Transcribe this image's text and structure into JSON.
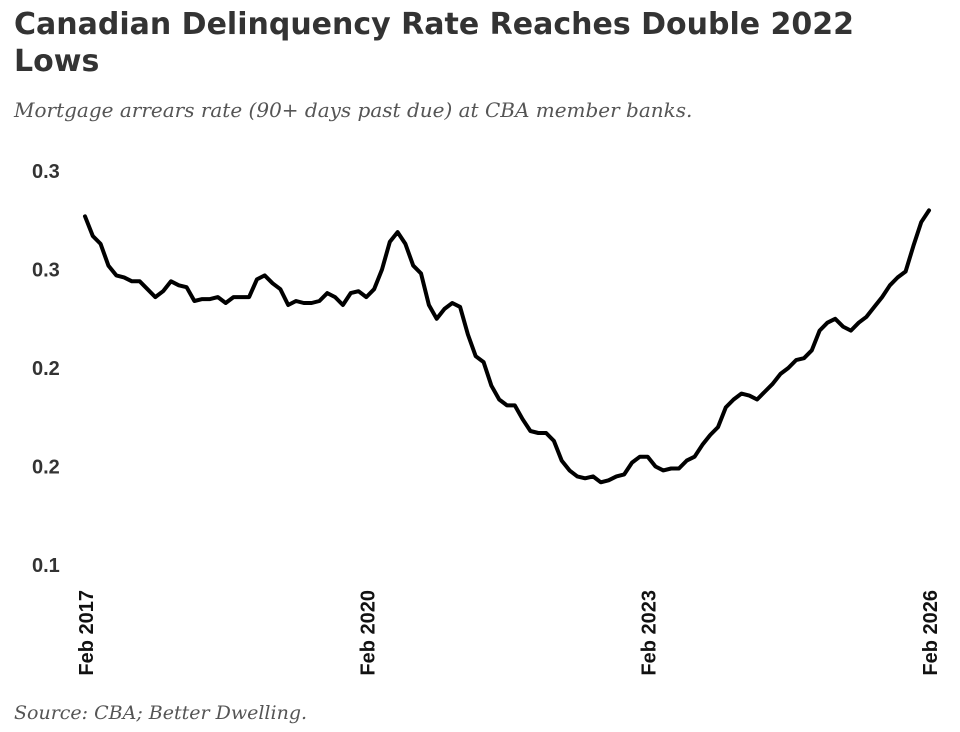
{
  "title": "Canadian Delinquency Rate Reaches Double 2022 Lows",
  "subtitle": "Mortgage arrears rate (90+ days past due) at CBA member banks.",
  "source": "Source: CBA; Better Dwelling.",
  "chart_data": {
    "type": "line",
    "ylim": [
      0.1,
      0.3
    ],
    "y_ticks": [
      {
        "value": 0.3,
        "label": "0.3"
      },
      {
        "value": 0.25,
        "label": "0.3"
      },
      {
        "value": 0.2,
        "label": "0.2"
      },
      {
        "value": 0.15,
        "label": "0.2"
      },
      {
        "value": 0.1,
        "label": "0.1"
      }
    ],
    "x_ticks": [
      "Feb 2017",
      "Feb 2020",
      "Feb 2023",
      "Feb 2026"
    ],
    "x_start": "2017-02",
    "x_end": "2026-02",
    "grid": false,
    "legend": "none",
    "line_color": "#000000",
    "series": [
      {
        "x": [
          "2017-02",
          "2017-03",
          "2017-04",
          "2017-05",
          "2017-06",
          "2017-07",
          "2017-08",
          "2017-09",
          "2017-10",
          "2017-11",
          "2017-12",
          "2018-01",
          "2018-02",
          "2018-03",
          "2018-04",
          "2018-05",
          "2018-06",
          "2018-07",
          "2018-08",
          "2018-09",
          "2018-10",
          "2018-11",
          "2018-12",
          "2019-01",
          "2019-02",
          "2019-03",
          "2019-04",
          "2019-05",
          "2019-06",
          "2019-07",
          "2019-08",
          "2019-09",
          "2019-10",
          "2019-11",
          "2019-12",
          "2020-01",
          "2020-02",
          "2020-03",
          "2020-04",
          "2020-05",
          "2020-06",
          "2020-07",
          "2020-08",
          "2020-09",
          "2020-10",
          "2020-11",
          "2020-12",
          "2021-01",
          "2021-02",
          "2021-03",
          "2021-04",
          "2021-05",
          "2021-06",
          "2021-07",
          "2021-08",
          "2021-09",
          "2021-10",
          "2021-11",
          "2021-12",
          "2022-01",
          "2022-02",
          "2022-03",
          "2022-04",
          "2022-05",
          "2022-06",
          "2022-07",
          "2022-08",
          "2022-09",
          "2022-10",
          "2022-11",
          "2022-12",
          "2023-01",
          "2023-02",
          "2023-03",
          "2023-04",
          "2023-05",
          "2023-06",
          "2023-07",
          "2023-08",
          "2023-09",
          "2023-10",
          "2023-11",
          "2023-12",
          "2024-01",
          "2024-02",
          "2024-03",
          "2024-04",
          "2024-05",
          "2024-06",
          "2024-07",
          "2024-08",
          "2024-09",
          "2024-10",
          "2024-11",
          "2024-12",
          "2025-01",
          "2025-02",
          "2025-03",
          "2025-04",
          "2025-05",
          "2025-06",
          "2025-07",
          "2025-08",
          "2025-09",
          "2025-10",
          "2025-11",
          "2025-12",
          "2026-01",
          "2026-02"
        ],
        "values": [
          0.277,
          0.267,
          0.263,
          0.252,
          0.247,
          0.246,
          0.244,
          0.244,
          0.24,
          0.236,
          0.239,
          0.244,
          0.242,
          0.241,
          0.234,
          0.235,
          0.235,
          0.236,
          0.233,
          0.236,
          0.236,
          0.236,
          0.245,
          0.247,
          0.243,
          0.24,
          0.232,
          0.234,
          0.233,
          0.233,
          0.234,
          0.238,
          0.236,
          0.232,
          0.238,
          0.239,
          0.236,
          0.24,
          0.25,
          0.264,
          0.269,
          0.263,
          0.252,
          0.248,
          0.232,
          0.225,
          0.23,
          0.233,
          0.231,
          0.217,
          0.206,
          0.203,
          0.191,
          0.184,
          0.181,
          0.181,
          0.174,
          0.168,
          0.167,
          0.167,
          0.163,
          0.153,
          0.148,
          0.145,
          0.144,
          0.145,
          0.142,
          0.143,
          0.145,
          0.146,
          0.152,
          0.155,
          0.155,
          0.15,
          0.148,
          0.149,
          0.149,
          0.153,
          0.155,
          0.161,
          0.166,
          0.17,
          0.18,
          0.184,
          0.187,
          0.186,
          0.184,
          0.188,
          0.192,
          0.197,
          0.2,
          0.204,
          0.205,
          0.209,
          0.219,
          0.223,
          0.225,
          0.221,
          0.219,
          0.223,
          0.226,
          0.231,
          0.236,
          0.242,
          0.246,
          0.249,
          0.262,
          0.274,
          0.28
        ]
      }
    ]
  }
}
